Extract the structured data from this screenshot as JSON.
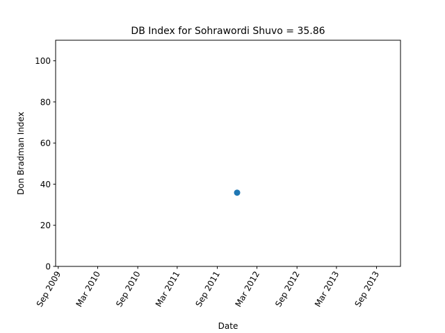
{
  "chart_data": {
    "type": "scatter",
    "title": "DB Index for Sohrawordi Shuvo = 35.86",
    "xlabel": "Date",
    "ylabel": "Don Bradman Index",
    "xlim": [
      "2009-08-20",
      "2013-12-20"
    ],
    "ylim": [
      0,
      110
    ],
    "x_ticks": [
      "2009-09-01",
      "2010-03-01",
      "2010-09-01",
      "2011-03-01",
      "2011-09-01",
      "2012-03-01",
      "2012-09-01",
      "2013-03-01",
      "2013-09-01"
    ],
    "x_tick_labels": [
      "Sep 2009",
      "Mar 2010",
      "Sep 2010",
      "Mar 2011",
      "Sep 2011",
      "Mar 2012",
      "Sep 2012",
      "Mar 2013",
      "Sep 2013"
    ],
    "y_ticks": [
      0,
      20,
      40,
      60,
      80,
      100
    ],
    "y_tick_labels": [
      "0",
      "20",
      "40",
      "60",
      "80",
      "100"
    ],
    "grid": false,
    "marker_color": "#1f77b4",
    "points": [
      {
        "x": "2011-12-01",
        "y": 35.86
      }
    ]
  }
}
